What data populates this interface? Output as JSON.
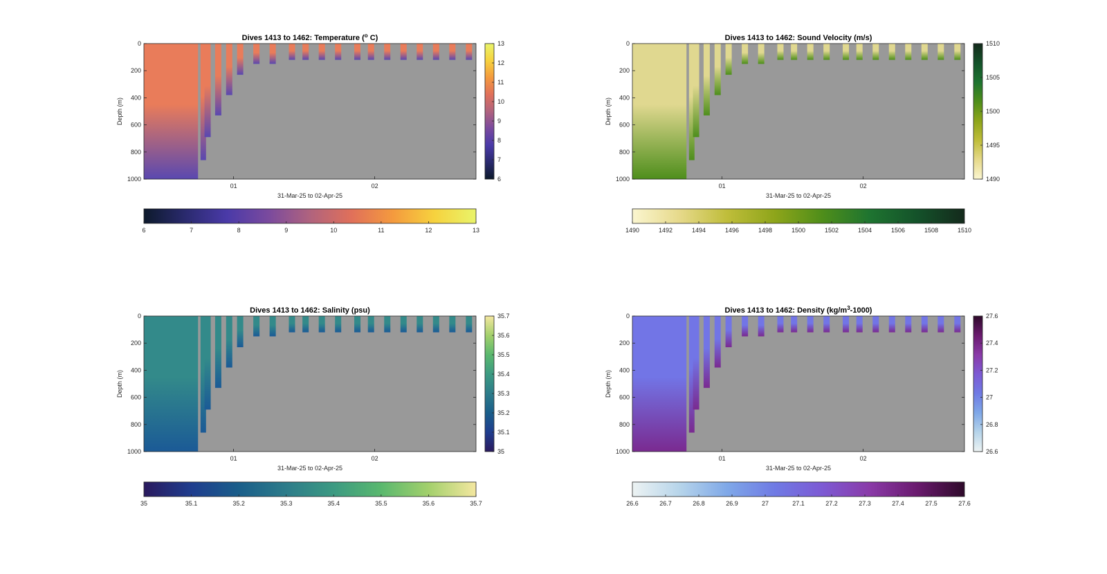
{
  "chart_data": [
    {
      "type": "heatmap",
      "title_pre": "Dives 1413 to 1462: Temperature (",
      "title_sup": "o",
      "title_post": " C)",
      "xlabel": "31-Mar-25 to 02-Apr-25",
      "ylabel": "Depth (m)",
      "ylim": [
        1000,
        0
      ],
      "yticks": [
        "0",
        "200",
        "400",
        "600",
        "800",
        "1000"
      ],
      "xticks": [
        "01",
        "02"
      ],
      "clim": [
        6,
        13
      ],
      "cb_side_ticks": [
        "6",
        "7",
        "8",
        "9",
        "10",
        "11",
        "12",
        "13"
      ],
      "cb_bottom_ticks": [
        "6",
        "7",
        "8",
        "9",
        "10",
        "11",
        "12",
        "13"
      ],
      "colormap": [
        "#0d1a2c",
        "#2a2a6e",
        "#4a3aa8",
        "#7a4a9e",
        "#b0637e",
        "#e0705a",
        "#f49a3e",
        "#f6d23e",
        "#e9f46a"
      ],
      "background": "#999999",
      "profile_color": "#e97c5a",
      "deep_color": "#5a48b0"
    },
    {
      "type": "heatmap",
      "title_pre": "Dives 1413 to 1462: Sound Velocity (m/s)",
      "title_sup": "",
      "title_post": "",
      "xlabel": "31-Mar-25 to 02-Apr-25",
      "ylabel": "Depth (m)",
      "ylim": [
        1000,
        0
      ],
      "yticks": [
        "0",
        "200",
        "400",
        "600",
        "800",
        "1000"
      ],
      "xticks": [
        "01",
        "02"
      ],
      "clim": [
        1490,
        1510
      ],
      "cb_side_ticks": [
        "1490",
        "1495",
        "1500",
        "1505",
        "1510"
      ],
      "cb_bottom_ticks": [
        "1490",
        "1492",
        "1494",
        "1496",
        "1498",
        "1500",
        "1502",
        "1504",
        "1506",
        "1508",
        "1510"
      ],
      "colormap": [
        "#fbf6d0",
        "#e6d98a",
        "#bfbd3a",
        "#8ea51a",
        "#4f8e1a",
        "#1e7430",
        "#14522a",
        "#142a1c"
      ],
      "background": "#999999",
      "profile_color": "#e0d890",
      "deep_color": "#4e8e1c"
    },
    {
      "type": "heatmap",
      "title_pre": "Dives 1413 to 1462: Salinity (psu)",
      "title_sup": "",
      "title_post": "",
      "xlabel": "31-Mar-25 to 02-Apr-25",
      "ylabel": "Depth (m)",
      "ylim": [
        1000,
        0
      ],
      "yticks": [
        "0",
        "200",
        "400",
        "600",
        "800",
        "1000"
      ],
      "xticks": [
        "01",
        "02"
      ],
      "clim": [
        35,
        35.7
      ],
      "cb_side_ticks": [
        "35",
        "35.1",
        "35.2",
        "35.3",
        "35.4",
        "35.5",
        "35.6",
        "35.7"
      ],
      "cb_bottom_ticks": [
        "35",
        "35.1",
        "35.2",
        "35.3",
        "35.4",
        "35.5",
        "35.6",
        "35.7"
      ],
      "colormap": [
        "#2a1a5e",
        "#1f3d8e",
        "#1a5e8a",
        "#2d7c8a",
        "#3c9a82",
        "#5ab86e",
        "#a3d06c",
        "#f4e7a0"
      ],
      "background": "#999999",
      "profile_color": "#338a8a",
      "deep_color": "#1b5a96"
    },
    {
      "type": "heatmap",
      "title_pre": "Dives 1413 to 1462: Density (kg/m",
      "title_sup": "3",
      "title_post": "-1000)",
      "xlabel": "31-Mar-25 to 02-Apr-25",
      "ylabel": "Depth (m)",
      "ylim": [
        1000,
        0
      ],
      "yticks": [
        "0",
        "200",
        "400",
        "600",
        "800",
        "1000"
      ],
      "xticks": [
        "01",
        "02"
      ],
      "clim": [
        26.6,
        27.6
      ],
      "cb_side_ticks": [
        "26.6",
        "26.8",
        "27",
        "27.2",
        "27.4",
        "27.6"
      ],
      "cb_bottom_ticks": [
        "26.6",
        "26.7",
        "26.8",
        "26.9",
        "27",
        "27.1",
        "27.2",
        "27.3",
        "27.4",
        "27.5",
        "27.6"
      ],
      "colormap": [
        "#edf3f3",
        "#b6d4ea",
        "#7fa8e8",
        "#6f7ae4",
        "#7d5ad4",
        "#8a3aa8",
        "#6a1a6e",
        "#2e0a2a"
      ],
      "background": "#999999",
      "profile_color": "#7275e6",
      "deep_color": "#7a2a90"
    }
  ],
  "profiles": [
    {
      "x": 0.163,
      "depth": 1000
    },
    {
      "x": 0.185,
      "depth": 860
    },
    {
      "x": 0.197,
      "depth": 690
    },
    {
      "x": 0.229,
      "depth": 530
    },
    {
      "x": 0.262,
      "depth": 380
    },
    {
      "x": 0.295,
      "depth": 230
    },
    {
      "x": 0.344,
      "depth": 150
    },
    {
      "x": 0.393,
      "depth": 150
    },
    {
      "x": 0.451,
      "depth": 120
    },
    {
      "x": 0.492,
      "depth": 120
    },
    {
      "x": 0.541,
      "depth": 120
    },
    {
      "x": 0.59,
      "depth": 120
    },
    {
      "x": 0.648,
      "depth": 120
    },
    {
      "x": 0.689,
      "depth": 120
    },
    {
      "x": 0.738,
      "depth": 120
    },
    {
      "x": 0.787,
      "depth": 120
    },
    {
      "x": 0.836,
      "depth": 120
    },
    {
      "x": 0.885,
      "depth": 120
    },
    {
      "x": 0.934,
      "depth": 120
    },
    {
      "x": 0.984,
      "depth": 120
    }
  ]
}
